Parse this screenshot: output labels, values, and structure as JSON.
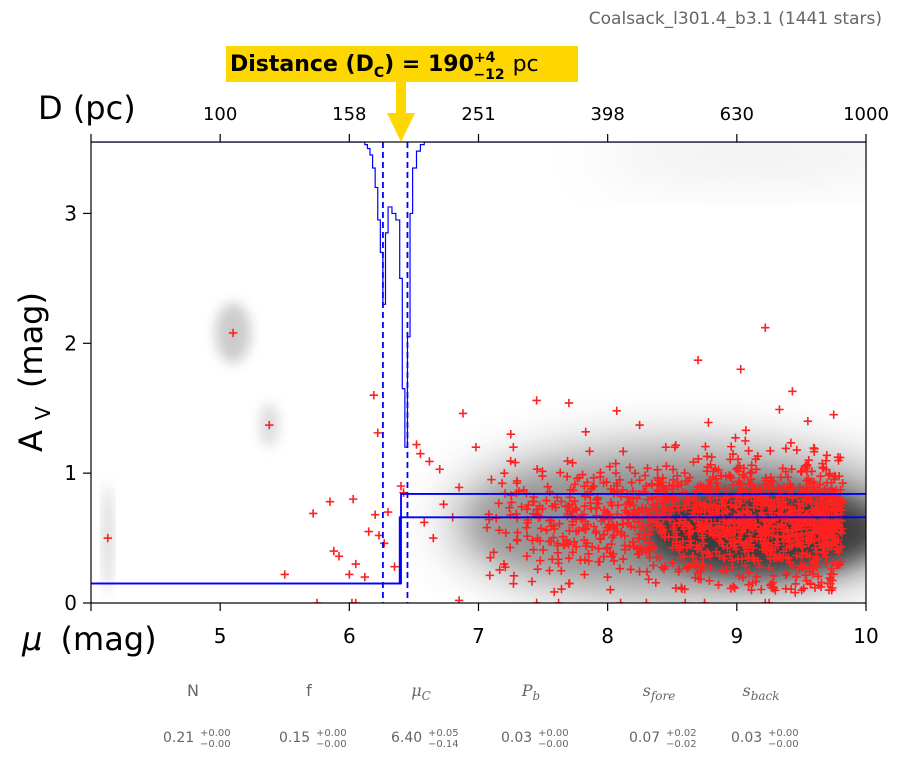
{
  "chart_data": {
    "type": "scatter",
    "subtitle": "Coalsack_l301.4_b3.1 (1441 stars)",
    "xlabel_symbol": "μ",
    "xlabel_unit": "(mag)",
    "ylabel_main": "A",
    "ylabel_sub": "V",
    "ylabel_unit": "(mag)",
    "top_axis_label": "D (pc)",
    "xlim": [
      4,
      10
    ],
    "ylim": [
      0,
      3.55
    ],
    "x_ticks": [
      5,
      6,
      7,
      8,
      9,
      10
    ],
    "y_ticks": [
      0,
      1,
      2,
      3
    ],
    "top_ticks": [
      {
        "mu": 5,
        "label": "100"
      },
      {
        "mu": 6,
        "label": "158"
      },
      {
        "mu": 7,
        "label": "251"
      },
      {
        "mu": 8,
        "label": "398"
      },
      {
        "mu": 9,
        "label": "630"
      },
      {
        "mu": 10,
        "label": "1000"
      }
    ],
    "distance_annotation": {
      "prefix": "Distance (D",
      "sub": "C",
      "mid": ") = 190",
      "sup": "+4",
      "low": "−12",
      "unit": "pc",
      "mu": 6.4,
      "box_color": "#FFD700"
    },
    "extinction_model": {
      "mu_c": 6.4,
      "a_fore": 0.15,
      "a_back_upper": 0.84,
      "a_back_lower": 0.66,
      "line_color": "#0000ff"
    },
    "dashed_lines_mu": [
      6.26,
      6.45
    ],
    "posterior_color": "#0000ff",
    "points_color": "#ff2020",
    "sample_points": [
      [
        4.13,
        0.5
      ],
      [
        5.1,
        2.08
      ],
      [
        5.38,
        1.37
      ],
      [
        5.5,
        0.22
      ],
      [
        5.72,
        0.69
      ],
      [
        5.85,
        0.78
      ],
      [
        5.88,
        0.4
      ],
      [
        5.92,
        0.36
      ],
      [
        6.03,
        0.8
      ],
      [
        6.05,
        0.3
      ],
      [
        6.0,
        0.22
      ],
      [
        6.12,
        0.2
      ],
      [
        6.19,
        1.6
      ],
      [
        6.22,
        1.31
      ],
      [
        6.2,
        0.68
      ],
      [
        6.23,
        0.52
      ],
      [
        6.27,
        0.46
      ],
      [
        6.3,
        0.7
      ],
      [
        6.35,
        0.28
      ],
      [
        6.4,
        0.9
      ],
      [
        6.42,
        0.85
      ],
      [
        6.52,
        1.22
      ],
      [
        6.55,
        1.15
      ],
      [
        6.62,
        1.09
      ],
      [
        6.7,
        1.03
      ],
      [
        6.73,
        0.76
      ],
      [
        6.65,
        0.5
      ],
      [
        6.58,
        0.62
      ],
      [
        6.8,
        0.66
      ],
      [
        6.85,
        0.89
      ],
      [
        6.88,
        1.46
      ],
      [
        6.98,
        1.2
      ],
      [
        7.1,
        0.95
      ],
      [
        7.2,
        1.0
      ],
      [
        7.25,
        1.3
      ],
      [
        7.27,
        1.2
      ],
      [
        7.35,
        0.87
      ],
      [
        7.45,
        1.56
      ],
      [
        7.7,
        1.54
      ],
      [
        7.7,
        0.15
      ],
      [
        7.55,
        0.25
      ],
      [
        8.07,
        1.48
      ],
      [
        8.45,
        1.2
      ],
      [
        8.52,
        1.2
      ],
      [
        8.7,
        1.87
      ],
      [
        8.78,
        1.39
      ],
      [
        9.03,
        1.8
      ],
      [
        9.07,
        1.33
      ],
      [
        9.22,
        2.12
      ],
      [
        9.33,
        1.49
      ],
      [
        9.38,
        1.19
      ],
      [
        9.43,
        1.63
      ],
      [
        9.55,
        1.4
      ],
      [
        9.75,
        1.45
      ],
      [
        9.8,
        1.12
      ],
      [
        6.02,
        0.0
      ],
      [
        6.05,
        0.0
      ],
      [
        6.15,
        0.55
      ],
      [
        6.85,
        0.02
      ],
      [
        7.45,
        0.0
      ],
      [
        7.62,
        0.0
      ],
      [
        8.1,
        0.0
      ],
      [
        8.3,
        0.0
      ],
      [
        8.6,
        0.0
      ],
      [
        8.75,
        0.0
      ],
      [
        9.22,
        0.0
      ],
      [
        9.25,
        0.0
      ],
      [
        5.75,
        0.0
      ]
    ],
    "cluster": {
      "count": 1320,
      "mu_min": 7.0,
      "mu_max": 9.82,
      "av_mean": 0.63,
      "av_sd": 0.23
    },
    "params": [
      {
        "name": "N",
        "style": "plain",
        "value": "0.21",
        "plus": "+0.00",
        "minus": "−0.00"
      },
      {
        "name": "f",
        "style": "plain",
        "value": "0.15",
        "plus": "+0.00",
        "minus": "−0.00"
      },
      {
        "name": "μ",
        "sub": "C",
        "style": "italic",
        "value": "6.40",
        "plus": "+0.05",
        "minus": "−0.14"
      },
      {
        "name": "P",
        "sub": "b",
        "style": "italic",
        "value": "0.03",
        "plus": "+0.00",
        "minus": "−0.00"
      },
      {
        "name": "s",
        "sub": "fore",
        "style": "italic",
        "value": "0.07",
        "plus": "+0.02",
        "minus": "−0.02"
      },
      {
        "name": "s",
        "sub": "back",
        "style": "italic",
        "value": "0.03",
        "plus": "+0.00",
        "minus": "−0.00"
      }
    ]
  }
}
